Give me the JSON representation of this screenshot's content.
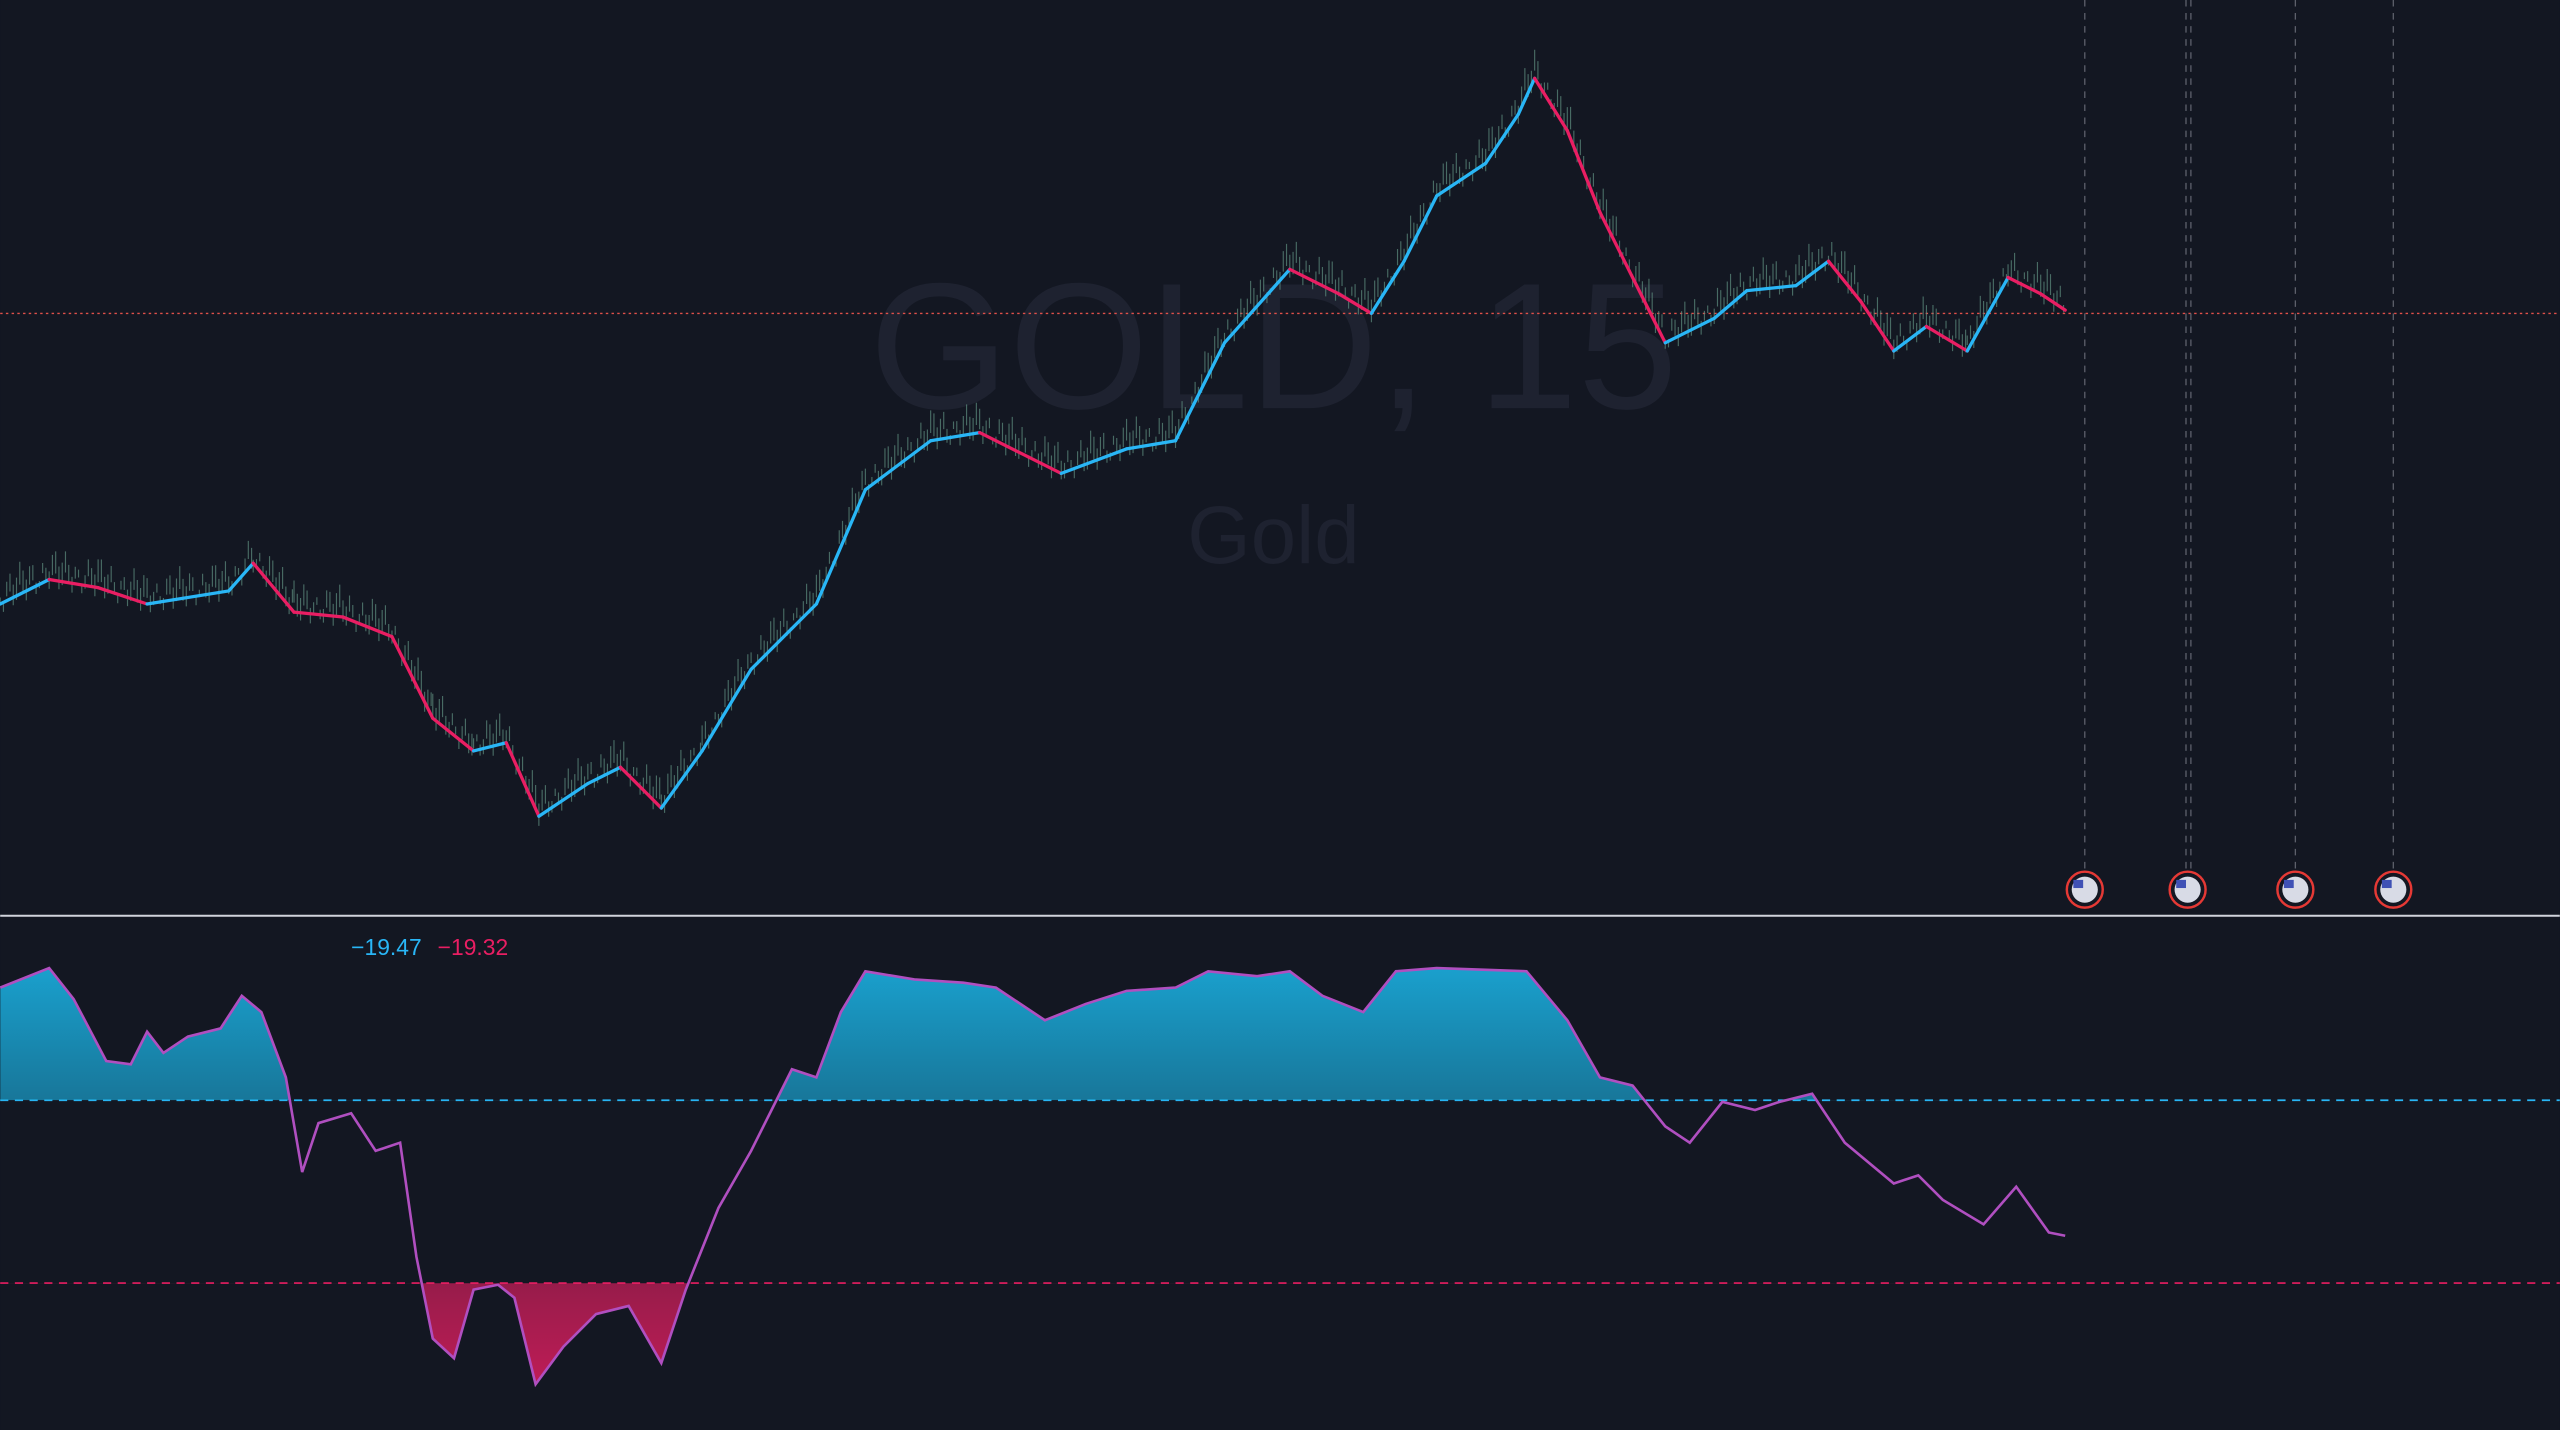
{
  "watermark": {
    "symbol": "GOLD, 15",
    "description": "Gold"
  },
  "indicator": {
    "values": [
      "−19.47",
      "−19.32"
    ]
  }
}
